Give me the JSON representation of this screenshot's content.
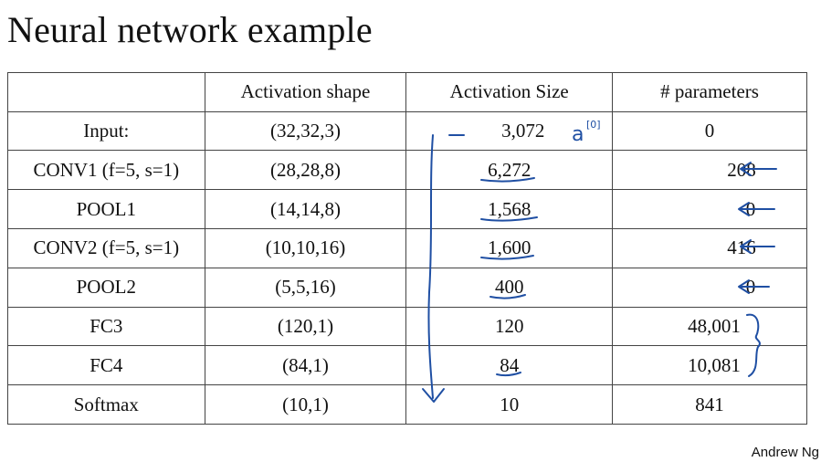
{
  "slide": {
    "title": "Neural network example",
    "footer": "Andrew Ng"
  },
  "table": {
    "headers": [
      "",
      "Activation shape",
      "Activation Size",
      "# parameters"
    ],
    "rows": [
      {
        "layer": "Input:",
        "shape": "(32,32,3)",
        "size": "3,072",
        "params": "0"
      },
      {
        "layer": "CONV1 (f=5, s=1)",
        "shape": "(28,28,8)",
        "size": "6,272",
        "params": "208"
      },
      {
        "layer": "POOL1",
        "shape": "(14,14,8)",
        "size": "1,568",
        "params": "0"
      },
      {
        "layer": "CONV2  (f=5, s=1)",
        "shape": "(10,10,16)",
        "size": "1,600",
        "params": "416"
      },
      {
        "layer": "POOL2",
        "shape": "(5,5,16)",
        "size": "400",
        "params": "0"
      },
      {
        "layer": "FC3",
        "shape": "(120,1)",
        "size": "120",
        "params": "48,001"
      },
      {
        "layer": "FC4",
        "shape": "(84,1)",
        "size": "84",
        "params": "10,081"
      },
      {
        "layer": "Softmax",
        "shape": "(10,1)",
        "size": "10",
        "params": "841"
      }
    ]
  },
  "annotations": {
    "ink_color": "#1f4fa3",
    "input_note": "a",
    "input_note_superscript": "[0]"
  }
}
